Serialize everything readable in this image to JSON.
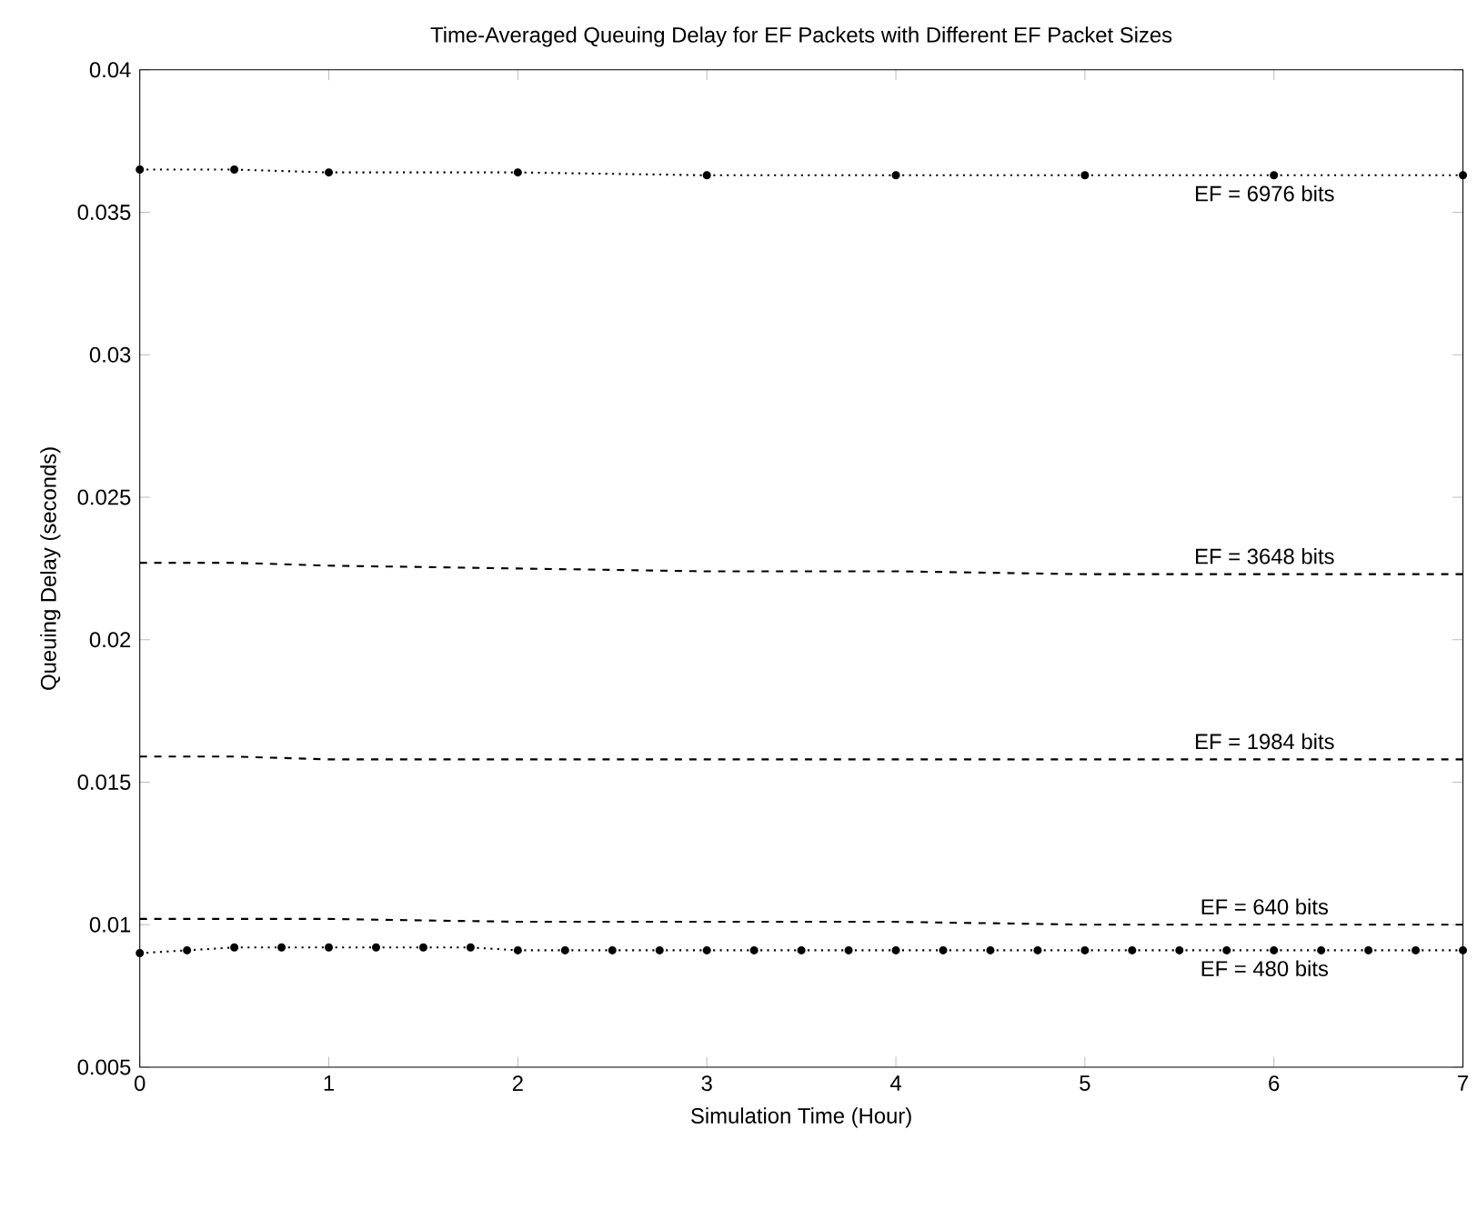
{
  "chart_data": {
    "type": "line",
    "title": "Time-Averaged Queuing Delay for EF Packets with Different EF Packet Sizes",
    "xlabel": "Simulation Time (Hour)",
    "ylabel": "Queuing Delay (seconds)",
    "xlim": [
      0,
      7
    ],
    "ylim": [
      0.005,
      0.04
    ],
    "xticks": [
      0,
      1,
      2,
      3,
      4,
      5,
      6,
      7
    ],
    "yticks": [
      0.005,
      0.01,
      0.015,
      0.02,
      0.025,
      0.03,
      0.035,
      0.04
    ],
    "grid": false,
    "legend": false,
    "series": [
      {
        "name": "EF = 6976 bits",
        "color": "#000000",
        "marker": "circle",
        "line_style": "dotted",
        "x": [
          0,
          0.5,
          1,
          2,
          3,
          4,
          5,
          6,
          7
        ],
        "values": [
          0.0365,
          0.0365,
          0.0364,
          0.0364,
          0.0363,
          0.0363,
          0.0363,
          0.0363,
          0.0363
        ]
      },
      {
        "name": "EF = 3648 bits",
        "color": "#000000",
        "marker": "none",
        "line_style": "dashed",
        "x": [
          0,
          0.5,
          1,
          2,
          3,
          4,
          5,
          6,
          7
        ],
        "values": [
          0.0227,
          0.0227,
          0.0226,
          0.0225,
          0.0224,
          0.0224,
          0.0223,
          0.0223,
          0.0223
        ]
      },
      {
        "name": "EF = 1984 bits",
        "color": "#000000",
        "marker": "none",
        "line_style": "dashed",
        "x": [
          0,
          0.5,
          1,
          2,
          3,
          4,
          5,
          6,
          7
        ],
        "values": [
          0.0159,
          0.0159,
          0.0158,
          0.0158,
          0.0158,
          0.0158,
          0.0158,
          0.0158,
          0.0158
        ]
      },
      {
        "name": "EF = 640 bits",
        "color": "#000000",
        "marker": "none",
        "line_style": "dashed",
        "x": [
          0,
          0.5,
          1,
          2,
          3,
          4,
          5,
          6,
          7
        ],
        "values": [
          0.0102,
          0.0102,
          0.0102,
          0.0101,
          0.0101,
          0.0101,
          0.01,
          0.01,
          0.01
        ]
      },
      {
        "name": "EF = 480 bits",
        "color": "#000000",
        "marker": "circle",
        "line_style": "dotted",
        "x": [
          0,
          0.25,
          0.5,
          0.75,
          1,
          1.25,
          1.5,
          1.75,
          2,
          2.25,
          2.5,
          2.75,
          3,
          3.25,
          3.5,
          3.75,
          4,
          4.25,
          4.5,
          4.75,
          5,
          5.25,
          5.5,
          5.75,
          6,
          6.25,
          6.5,
          6.75,
          7
        ],
        "values": [
          0.009,
          0.0091,
          0.0092,
          0.0092,
          0.0092,
          0.0092,
          0.0092,
          0.0092,
          0.0091,
          0.0091,
          0.0091,
          0.0091,
          0.0091,
          0.0091,
          0.0091,
          0.0091,
          0.0091,
          0.0091,
          0.0091,
          0.0091,
          0.0091,
          0.0091,
          0.0091,
          0.0091,
          0.0091,
          0.0091,
          0.0091,
          0.0091,
          0.0091
        ]
      }
    ]
  }
}
